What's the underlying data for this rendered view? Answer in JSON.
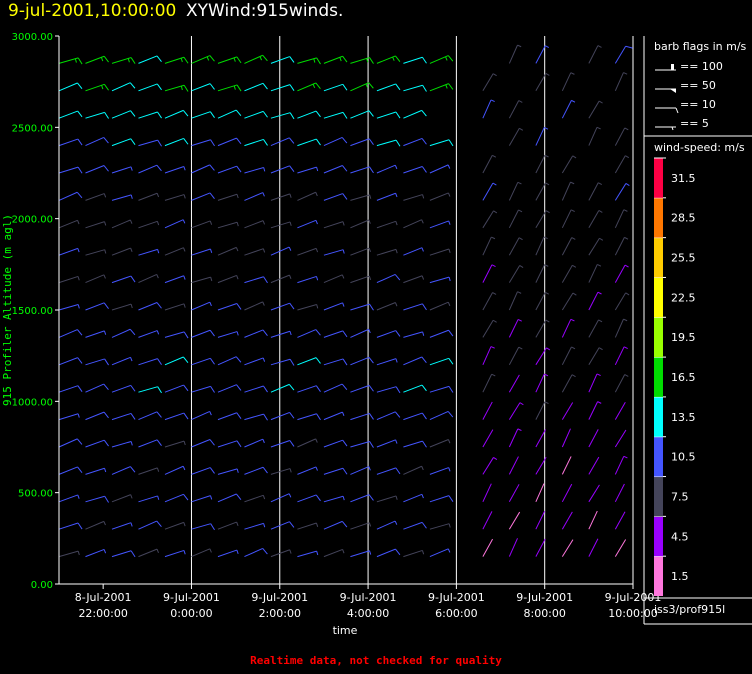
{
  "header": {
    "date_title": "9-jul-2001,10:00:00",
    "product_title": "XYWind:915winds."
  },
  "colors": {
    "background": "#000000",
    "axis": "#ffffff",
    "ylabel": "#00ff00",
    "date_title": "#ffff00",
    "footer": "#ff0000"
  },
  "chart_data": {
    "type": "scatter",
    "subtype": "wind-barbs",
    "title": "",
    "xlabel": "time",
    "ylabel": "915 Profiler Altitude (m agl)",
    "xlim": [
      "8-Jul-2001 21:00",
      "9-Jul-2001 10:00"
    ],
    "ylim": [
      0,
      3000
    ],
    "x_ticks": [
      {
        "date": "8-Jul-2001",
        "time": "22:00:00"
      },
      {
        "date": "9-Jul-2001",
        "time": "0:00:00"
      },
      {
        "date": "9-Jul-2001",
        "time": "2:00:00"
      },
      {
        "date": "9-Jul-2001",
        "time": "4:00:00"
      },
      {
        "date": "9-Jul-2001",
        "time": "6:00:00"
      },
      {
        "date": "9-Jul-2001",
        "time": "8:00:00"
      },
      {
        "date": "9-Jul-2001",
        "time": "10:00:00"
      }
    ],
    "x_tick_hours": [
      22,
      24,
      26,
      28,
      30,
      32,
      34
    ],
    "gridline_hours": [
      24,
      26,
      28,
      30,
      32,
      34
    ],
    "y_ticks": [
      "0.00",
      "500.00",
      "1000.00",
      "1500.00",
      "2000.00",
      "2500.00",
      "3000.00"
    ],
    "y_tick_values": [
      0,
      500,
      1000,
      1500,
      2000,
      2500,
      3000
    ],
    "barb_flags": {
      "title": "barb flags in m/s",
      "items": [
        {
          "label": "== 100",
          "value": 100
        },
        {
          "label": "== 50",
          "value": 50
        },
        {
          "label": "== 10",
          "value": 10
        },
        {
          "label": "== 5",
          "value": 5
        }
      ]
    },
    "wind_speed_scale": {
      "title": "wind-speed: m/s",
      "bins": [
        {
          "label": "1.5",
          "color": "#ff77dd"
        },
        {
          "label": "4.5",
          "color": "#9900ff"
        },
        {
          "label": "7.5",
          "color": "#44445a"
        },
        {
          "label": "10.5",
          "color": "#4455ff"
        },
        {
          "label": "13.5",
          "color": "#00ffff"
        },
        {
          "label": "16.5",
          "color": "#00dd00"
        },
        {
          "label": "19.5",
          "color": "#99ff00"
        },
        {
          "label": "22.5",
          "color": "#ffff00"
        },
        {
          "label": "25.5",
          "color": "#ffcc00"
        },
        {
          "label": "28.5",
          "color": "#ff7700"
        },
        {
          "label": "31.5",
          "color": "#ff0044"
        }
      ]
    },
    "station": "iss3/prof915l",
    "series": [
      {
        "x_hours": [
          21.0,
          21.6,
          22.2,
          22.8,
          23.4,
          24.0,
          24.6,
          25.2,
          25.8,
          26.4,
          27.0,
          27.6,
          28.2,
          28.8,
          29.4,
          30.6,
          31.2,
          31.8,
          32.4,
          33.0,
          33.6
        ],
        "altitudes": [
          150,
          300,
          450,
          600,
          750,
          900,
          1050,
          1200,
          1350,
          1500,
          1650,
          1800,
          1950,
          2100,
          2250,
          2400,
          2550,
          2700,
          2850
        ],
        "speed_profile": [
          [
            0,
            9
          ],
          [
            700,
            10
          ],
          [
            1100,
            11.5
          ],
          [
            1600,
            9
          ],
          [
            2000,
            8
          ],
          [
            2300,
            11
          ],
          [
            2600,
            14
          ],
          [
            2900,
            16
          ]
        ],
        "late_speed_profile": [
          [
            0,
            3
          ],
          [
            700,
            4
          ],
          [
            1100,
            6
          ],
          [
            1600,
            7
          ],
          [
            2200,
            8
          ],
          [
            2900,
            9
          ]
        ]
      }
    ]
  },
  "footer": {
    "note": "Realtime data, not checked for quality"
  }
}
